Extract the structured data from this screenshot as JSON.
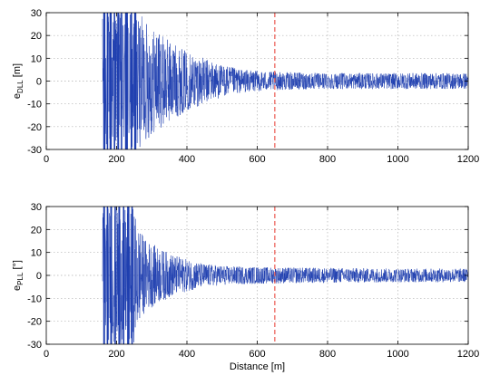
{
  "chart_data": [
    {
      "type": "line",
      "title": "",
      "xlabel": "",
      "ylabel": "e",
      "ylabel_sub": "DLL",
      "ylabel_unit": " [m]",
      "xlim": [
        0,
        1200
      ],
      "ylim": [
        -30,
        30
      ],
      "xticks": [
        0,
        200,
        400,
        600,
        800,
        1000,
        1200
      ],
      "yticks": [
        -30,
        -20,
        -10,
        0,
        10,
        20,
        30
      ],
      "grid": true,
      "series_color": "#1f3fb0",
      "marker_color": "#e8392f",
      "vertical_marker_x": 650,
      "saturated_bursts": [
        [
          162,
          168
        ],
        [
          172,
          176
        ],
        [
          180,
          186
        ],
        [
          192,
          196
        ],
        [
          202,
          207
        ],
        [
          212,
          216
        ],
        [
          224,
          232
        ],
        [
          240,
          244
        ],
        [
          250,
          256
        ]
      ],
      "envelope": [
        {
          "x": 160,
          "amp": 30
        },
        {
          "x": 258,
          "amp": 30
        },
        {
          "x": 275,
          "amp": 28
        },
        {
          "x": 300,
          "amp": 24
        },
        {
          "x": 330,
          "amp": 20
        },
        {
          "x": 360,
          "amp": 17
        },
        {
          "x": 400,
          "amp": 13
        },
        {
          "x": 450,
          "amp": 10
        },
        {
          "x": 500,
          "amp": 7
        },
        {
          "x": 560,
          "amp": 5
        },
        {
          "x": 650,
          "amp": 4
        },
        {
          "x": 800,
          "amp": 3.5
        },
        {
          "x": 1000,
          "amp": 3.5
        },
        {
          "x": 1200,
          "amp": 3.5
        }
      ]
    },
    {
      "type": "line",
      "title": "",
      "xlabel": "Distance [m]",
      "ylabel": "e",
      "ylabel_sub": "PLL",
      "ylabel_unit": " [°]",
      "xlim": [
        0,
        1200
      ],
      "ylim": [
        -30,
        30
      ],
      "xticks": [
        0,
        200,
        400,
        600,
        800,
        1000,
        1200
      ],
      "yticks": [
        -30,
        -20,
        -10,
        0,
        10,
        20,
        30
      ],
      "grid": true,
      "series_color": "#1f3fb0",
      "marker_color": "#e8392f",
      "vertical_marker_x": 650,
      "saturated_bursts": [
        [
          162,
          167
        ],
        [
          172,
          176
        ],
        [
          182,
          187
        ],
        [
          194,
          198
        ],
        [
          205,
          210
        ],
        [
          218,
          222
        ],
        [
          230,
          236
        ],
        [
          242,
          246
        ]
      ],
      "envelope": [
        {
          "x": 160,
          "amp": 30
        },
        {
          "x": 248,
          "amp": 30
        },
        {
          "x": 262,
          "amp": 22
        },
        {
          "x": 280,
          "amp": 16
        },
        {
          "x": 320,
          "amp": 12
        },
        {
          "x": 360,
          "amp": 9
        },
        {
          "x": 400,
          "amp": 7
        },
        {
          "x": 450,
          "amp": 5
        },
        {
          "x": 520,
          "amp": 4
        },
        {
          "x": 650,
          "amp": 3.5
        },
        {
          "x": 1000,
          "amp": 3
        },
        {
          "x": 1200,
          "amp": 3
        }
      ]
    }
  ]
}
